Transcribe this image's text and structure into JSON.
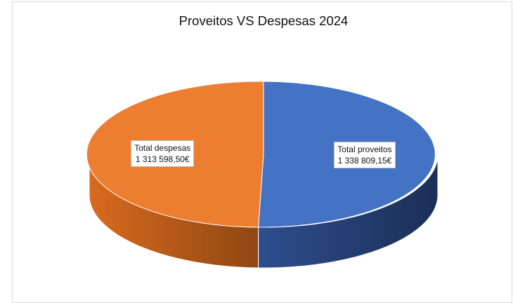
{
  "chart_data": {
    "type": "pie",
    "title": "Proveitos VS Despesas 2024",
    "slices": [
      {
        "category": "Total proveitos",
        "value": 1338809.15,
        "value_label": "1 338 809,15€",
        "color": "#4472C4"
      },
      {
        "category": "Total despesas",
        "value": 1313598.5,
        "value_label": "1 313 598,50€",
        "color": "#ED7D31"
      }
    ],
    "style": "3d",
    "legend": "none",
    "data_labels": "category and value"
  }
}
